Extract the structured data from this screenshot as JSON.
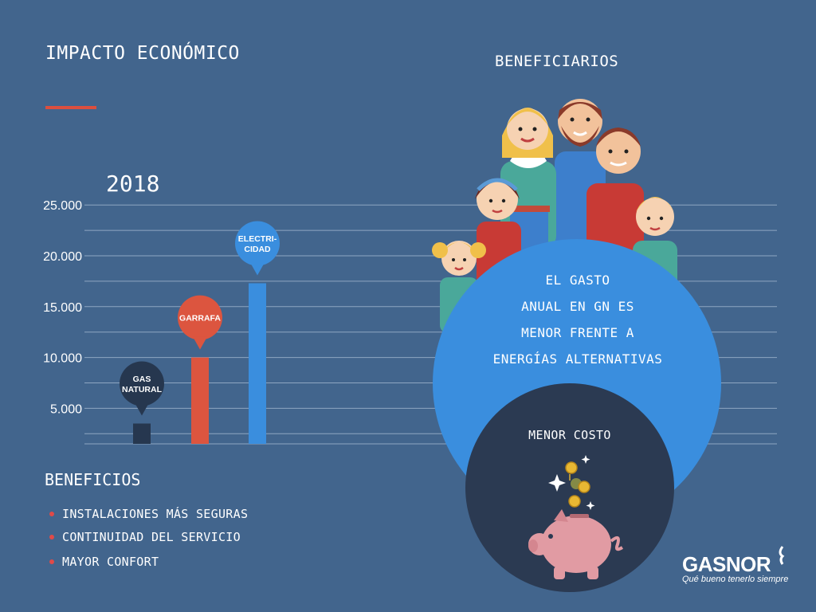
{
  "header": {
    "title": "IMPACTO ECONÓMICO",
    "beneficiaries_title": "BENEFICIARIOS"
  },
  "chart_data": {
    "type": "bar",
    "title": "2018",
    "categories": [
      "GAS NATURAL",
      "GARRAFA",
      "ELECTRICIDAD"
    ],
    "category_labels": [
      [
        "GAS",
        "NATURAL"
      ],
      [
        "GARRAFA"
      ],
      [
        "ELECTRI-",
        "CIDAD"
      ]
    ],
    "values": [
      3500,
      10000,
      17300
    ],
    "ylim": [
      1500,
      24000
    ],
    "ytick_values": [
      5000,
      10000,
      15000,
      20000,
      25000
    ],
    "ytick_labels": [
      "5.000",
      "10.000",
      "15.000",
      "20.000",
      "25.000"
    ],
    "grid": true,
    "colors": [
      "#26374f",
      "#dc553f",
      "#3a8ede"
    ]
  },
  "benefits": {
    "title": "BENEFICIOS",
    "items": [
      "INSTALACIONES MÁS SEGURAS",
      "CONTINUIDAD DEL SERVICIO",
      "MAYOR CONFORT"
    ]
  },
  "callout": {
    "lines": [
      "EL GASTO",
      "ANUAL EN GN ES",
      "MENOR FRENTE A",
      "ENERGÍAS ALTERNATIVAS"
    ],
    "subtitle": "MENOR COSTO"
  },
  "brand": {
    "name": "GASNOR",
    "tagline": "Qué bueno tenerlo siempre"
  },
  "colors": {
    "background": "#42658d",
    "accent_red": "#dc4f3e",
    "blue_circle": "#3a8ede",
    "dark_circle": "#2b3a52"
  }
}
